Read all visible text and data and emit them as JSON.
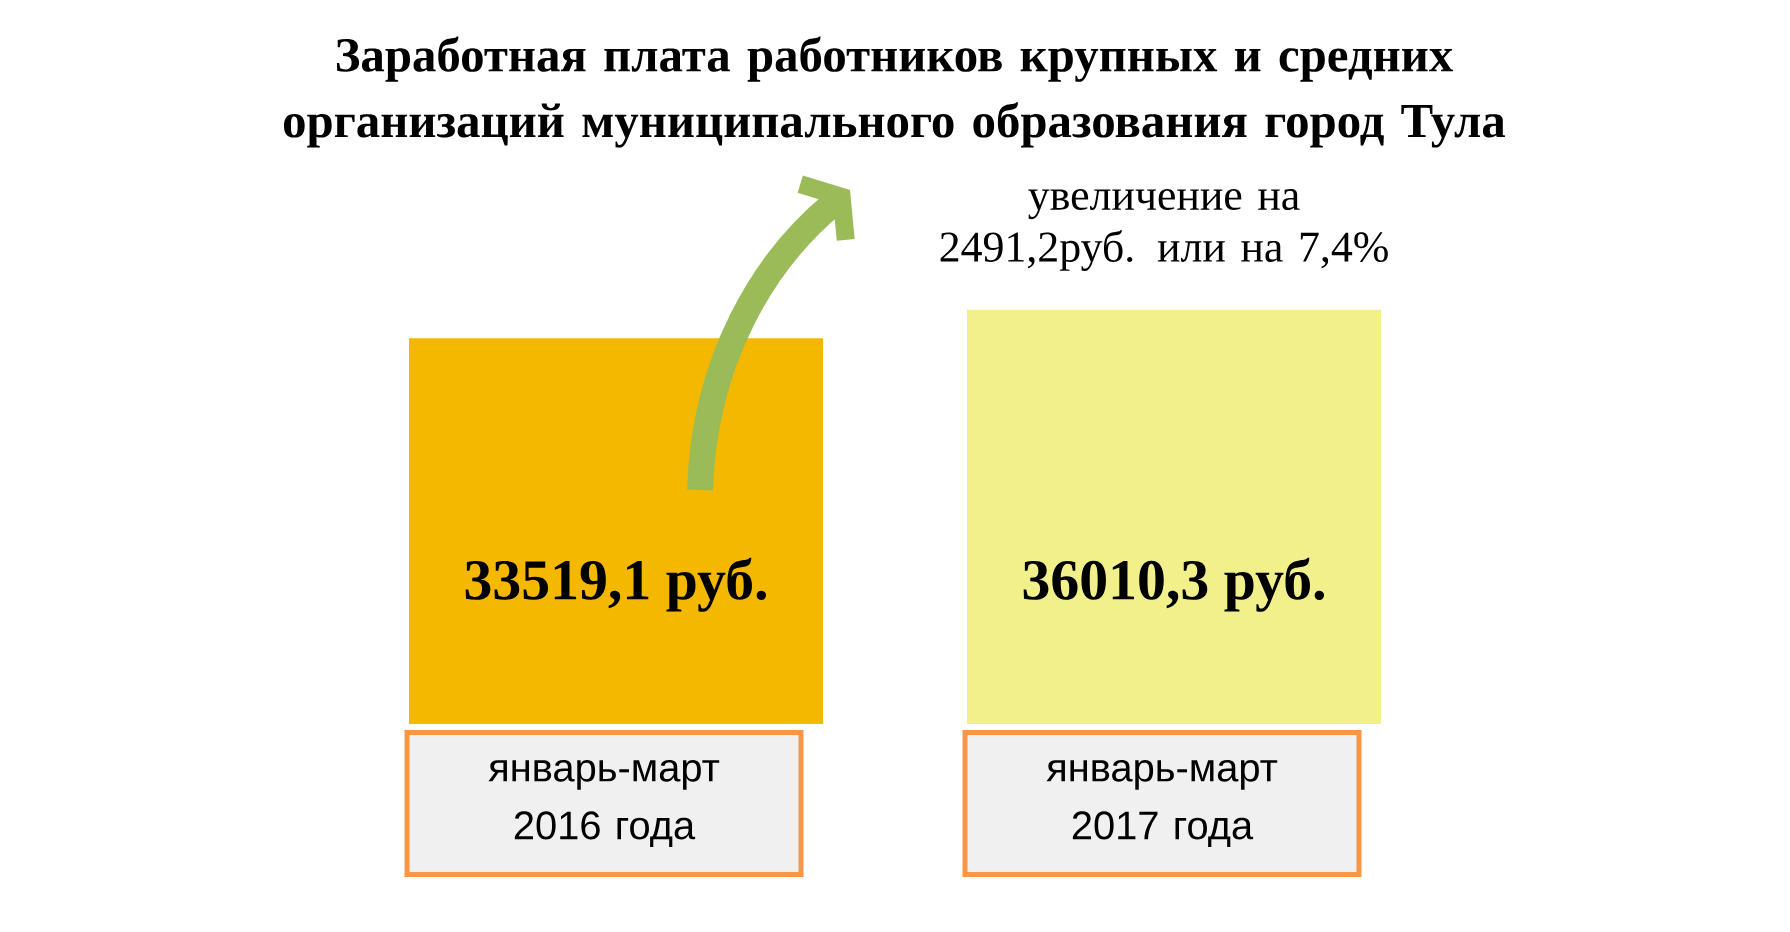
{
  "chart_data": {
    "type": "bar",
    "title": "Заработная плата работников крупных и средних\nорганизаций муниципального образования город Тула",
    "categories": [
      "январь-март 2016 года",
      "январь-март 2017 года"
    ],
    "values": [
      33519.1,
      36010.3
    ],
    "colors": [
      "#f5b800",
      "#f2f08a"
    ],
    "value_labels": [
      "33519,1 руб.",
      "36010,3 руб."
    ],
    "annotations": [
      "увеличение на\n2491,2руб. или на 7,4%"
    ]
  }
}
